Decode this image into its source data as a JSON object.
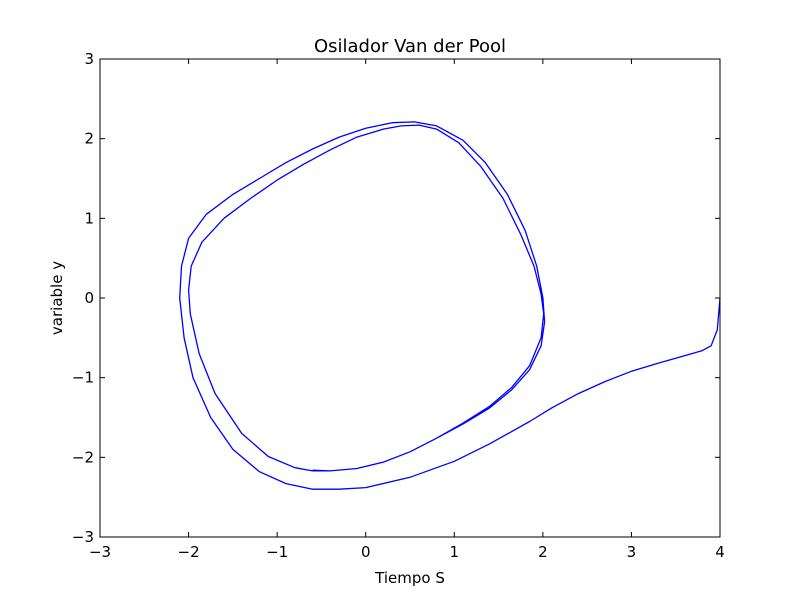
{
  "chart_data": {
    "type": "line",
    "title": "Osilador Van der Pool",
    "xlabel": "Tiempo S",
    "ylabel": "variable y",
    "xlim": [
      -3,
      4
    ],
    "ylim": [
      -3,
      3
    ],
    "xticks": [
      -3,
      -2,
      -1,
      0,
      1,
      2,
      3,
      4
    ],
    "yticks": [
      -3,
      -2,
      -1,
      0,
      1,
      2,
      3
    ],
    "xtick_labels": [
      "−3",
      "−2",
      "−1",
      "0",
      "1",
      "2",
      "3",
      "4"
    ],
    "ytick_labels": [
      "−3",
      "−2",
      "−1",
      "0",
      "1",
      "2",
      "3"
    ],
    "grid": false,
    "series": [
      {
        "color": "#0000ff",
        "x": [
          4.0,
          3.97,
          3.9,
          3.8,
          3.55,
          3.3,
          3.0,
          2.7,
          2.4,
          2.1,
          1.85,
          1.4,
          1.0,
          0.5,
          0.0,
          -0.3,
          -0.6,
          -0.9,
          -1.2,
          -1.5,
          -1.75,
          -1.95,
          -2.05,
          -2.1,
          -2.08,
          -2.0,
          -1.8,
          -1.5,
          -1.2,
          -0.9,
          -0.6,
          -0.3,
          0.0,
          0.3,
          0.55,
          0.8,
          1.1,
          1.35,
          1.6,
          1.8,
          1.93,
          2.0,
          2.02,
          1.98,
          1.85,
          1.65,
          1.4,
          1.1,
          0.8,
          0.5,
          0.2,
          -0.1,
          -0.4,
          -0.6,
          -0.8,
          -1.1,
          -1.4,
          -1.7,
          -1.88,
          -1.98,
          -2.0,
          -1.97,
          -1.85,
          -1.6,
          -1.3,
          -1.0,
          -0.7,
          -0.4,
          -0.1,
          0.2,
          0.4,
          0.6,
          0.8,
          1.05,
          1.3,
          1.55,
          1.75,
          1.9,
          1.98,
          2.01,
          1.98,
          1.85,
          1.65,
          1.4,
          1.1,
          0.8,
          0.5,
          0.2,
          -0.1,
          -0.4,
          -0.6
        ],
        "y": [
          0.0,
          -0.4,
          -0.6,
          -0.66,
          -0.74,
          -0.82,
          -0.92,
          -1.05,
          -1.2,
          -1.38,
          -1.55,
          -1.83,
          -2.05,
          -2.25,
          -2.38,
          -2.4,
          -2.4,
          -2.33,
          -2.18,
          -1.9,
          -1.5,
          -1.0,
          -0.5,
          0.0,
          0.4,
          0.75,
          1.05,
          1.3,
          1.5,
          1.7,
          1.87,
          2.02,
          2.13,
          2.2,
          2.21,
          2.16,
          1.98,
          1.7,
          1.3,
          0.85,
          0.4,
          0.0,
          -0.3,
          -0.6,
          -0.9,
          -1.15,
          -1.38,
          -1.58,
          -1.76,
          -1.93,
          -2.06,
          -2.14,
          -2.17,
          -2.17,
          -2.13,
          -1.99,
          -1.7,
          -1.2,
          -0.7,
          -0.2,
          0.1,
          0.4,
          0.7,
          1.0,
          1.25,
          1.48,
          1.68,
          1.86,
          2.02,
          2.12,
          2.16,
          2.17,
          2.12,
          1.95,
          1.65,
          1.25,
          0.8,
          0.4,
          0.05,
          -0.2,
          -0.5,
          -0.85,
          -1.12,
          -1.36,
          -1.57,
          -1.76,
          -1.93,
          -2.06,
          -2.14,
          -2.17,
          -2.16
        ]
      }
    ]
  }
}
